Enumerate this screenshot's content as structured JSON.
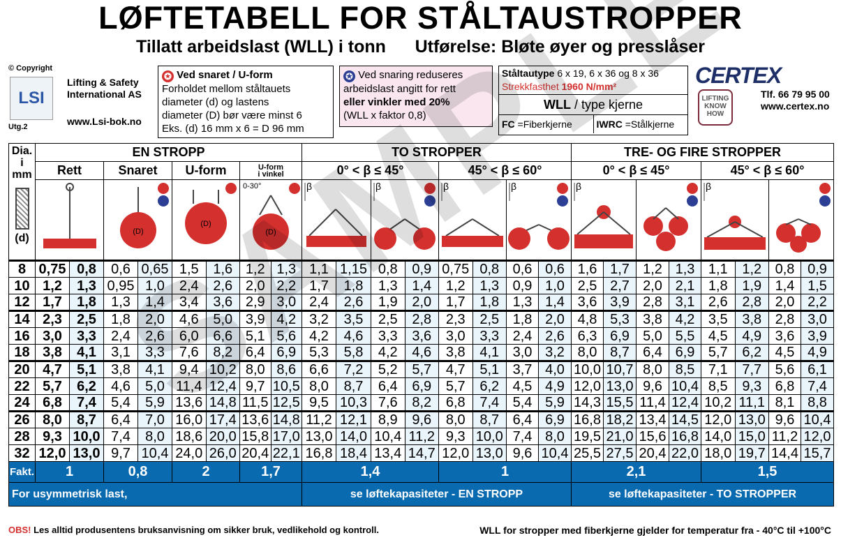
{
  "title": "LØFTETABELL FOR STÅLTAUSTROPPER",
  "subtitle": "Tillatt arbeidslast (WLL) i tonn      Utførelse: Bløte øyer og presslåser",
  "copyright": "© Copyright",
  "company": {
    "name": "Lifting & Safety",
    "name2": "International AS",
    "web": "www.Lsi-bok.no",
    "utg": "Utg.2",
    "logo_text": "LSI"
  },
  "box1": {
    "star": "✪",
    "head": "Ved snaret / U-form",
    "l1": "Forholdet mellom ståltauets",
    "l2": "diameter (d) og lastens",
    "l3": "diameter (D) bør være minst 6",
    "l4": "Eks. (d) 16 mm x 6 = D 96 mm"
  },
  "box2": {
    "star": "✪",
    "l1": "Ved snaring reduseres",
    "l2": "arbeidslast angitt for rett",
    "l3": "eller vinkler med 20%",
    "l4": "(WLL x faktor 0,8)"
  },
  "box3": {
    "l1a": "Ståltautype",
    "l1b": " 6 x 19, 6 x 36 og 8 x 36",
    "l2a": "Strekkfasthet ",
    "l2b": "1960 N/mm²",
    "wll": "WLL",
    "wll2": " / type kjerne",
    "fc": "FC",
    "fc2": " =Fiberkjerne",
    "iwrc": "IWRC",
    "iwrc2": " =Stålkjerne"
  },
  "certex": {
    "logo": "CERTEX",
    "tlf": "Tlf. 66 79 95 00",
    "web": "www.certex.no",
    "badge": "LIFTING KNOW HOW"
  },
  "headers": {
    "dia": "Dia. i mm",
    "d": "(d)",
    "en_stropp": "EN STROPP",
    "to_stropper": "TO STROPPER",
    "tre_fire": "TRE- OG FIRE STROPPER",
    "rett": "Rett",
    "snaret": "Snaret",
    "uform": "U-form",
    "uvinkel1": "U-form",
    "uvinkel2": "i vinkel",
    "a45": "0° < β ≤ 45°",
    "a60": "45° < β ≤ 60°",
    "angle_small": "0-30°",
    "beta": "β",
    "dlabel": "(D)"
  },
  "rows": [
    [
      "8",
      "0,75",
      "0,8",
      "0,6",
      "0,65",
      "1,5",
      "1,6",
      "1,2",
      "1,3",
      "1,1",
      "1,15",
      "0,8",
      "0,9",
      "0,75",
      "0,8",
      "0,6",
      "0,6",
      "1,6",
      "1,7",
      "1,2",
      "1,3",
      "1,1",
      "1,2",
      "0,8",
      "0,9"
    ],
    [
      "10",
      "1,2",
      "1,3",
      "0,95",
      "1,0",
      "2,4",
      "2,6",
      "2,0",
      "2,2",
      "1,7",
      "1,8",
      "1,3",
      "1,4",
      "1,2",
      "1,3",
      "0,9",
      "1,0",
      "2,5",
      "2,7",
      "2,0",
      "2,1",
      "1,8",
      "1,9",
      "1,4",
      "1,5"
    ],
    [
      "12",
      "1,7",
      "1,8",
      "1,3",
      "1,4",
      "3,4",
      "3,6",
      "2,9",
      "3,0",
      "2,4",
      "2,6",
      "1,9",
      "2,0",
      "1,7",
      "1,8",
      "1,3",
      "1,4",
      "3,6",
      "3,9",
      "2,8",
      "3,1",
      "2,6",
      "2,8",
      "2,0",
      "2,2"
    ],
    [
      "14",
      "2,3",
      "2,5",
      "1,8",
      "2,0",
      "4,6",
      "5,0",
      "3,9",
      "4,2",
      "3,2",
      "3,5",
      "2,5",
      "2,8",
      "2,3",
      "2,5",
      "1,8",
      "2,0",
      "4,8",
      "5,3",
      "3,8",
      "4,2",
      "3,5",
      "3,8",
      "2,8",
      "3,0"
    ],
    [
      "16",
      "3,0",
      "3,3",
      "2,4",
      "2,6",
      "6,0",
      "6,6",
      "5,1",
      "5,6",
      "4,2",
      "4,6",
      "3,3",
      "3,6",
      "3,0",
      "3,3",
      "2,4",
      "2,6",
      "6,3",
      "6,9",
      "5,0",
      "5,5",
      "4,5",
      "4,9",
      "3,6",
      "3,9"
    ],
    [
      "18",
      "3,8",
      "4,1",
      "3,1",
      "3,3",
      "7,6",
      "8,2",
      "6,4",
      "6,9",
      "5,3",
      "5,8",
      "4,2",
      "4,6",
      "3,8",
      "4,1",
      "3,0",
      "3,2",
      "8,0",
      "8,7",
      "6,4",
      "6,9",
      "5,7",
      "6,2",
      "4,5",
      "4,9"
    ],
    [
      "20",
      "4,7",
      "5,1",
      "3,8",
      "4,1",
      "9,4",
      "10,2",
      "8,0",
      "8,6",
      "6,6",
      "7,2",
      "5,2",
      "5,7",
      "4,7",
      "5,1",
      "3,7",
      "4,0",
      "10,0",
      "10,7",
      "8,0",
      "8,5",
      "7,1",
      "7,7",
      "5,6",
      "6,1"
    ],
    [
      "22",
      "5,7",
      "6,2",
      "4,6",
      "5,0",
      "11,4",
      "12,4",
      "9,7",
      "10,5",
      "8,0",
      "8,7",
      "6,4",
      "6,9",
      "5,7",
      "6,2",
      "4,5",
      "4,9",
      "12,0",
      "13,0",
      "9,6",
      "10,4",
      "8,5",
      "9,3",
      "6,8",
      "7,4"
    ],
    [
      "24",
      "6,8",
      "7,4",
      "5,4",
      "5,9",
      "13,6",
      "14,8",
      "11,5",
      "12,5",
      "9,5",
      "10,3",
      "7,6",
      "8,2",
      "6,8",
      "7,4",
      "5,4",
      "5,9",
      "14,3",
      "15,5",
      "11,4",
      "12,4",
      "10,2",
      "11,1",
      "8,1",
      "8,8"
    ],
    [
      "26",
      "8,0",
      "8,7",
      "6,4",
      "7,0",
      "16,0",
      "17,4",
      "13,6",
      "14,8",
      "11,2",
      "12,1",
      "8,9",
      "9,6",
      "8,0",
      "8,7",
      "6,4",
      "6,9",
      "16,8",
      "18,2",
      "13,4",
      "14,5",
      "12,0",
      "13,0",
      "9,6",
      "10,4"
    ],
    [
      "28",
      "9,3",
      "10,0",
      "7,4",
      "8,0",
      "18,6",
      "20,0",
      "15,8",
      "17,0",
      "13,0",
      "14,0",
      "10,4",
      "11,2",
      "9,3",
      "10,0",
      "7,4",
      "8,0",
      "19,5",
      "21,0",
      "15,6",
      "16,8",
      "14,0",
      "15,0",
      "11,2",
      "12,0"
    ],
    [
      "32",
      "12,0",
      "13,0",
      "9,7",
      "10,4",
      "24,0",
      "26,0",
      "20,4",
      "22,1",
      "16,8",
      "18,4",
      "13,4",
      "14,7",
      "12,0",
      "13,0",
      "9,6",
      "10,4",
      "25,5",
      "27,5",
      "20,4",
      "22,0",
      "18,0",
      "19,7",
      "14,4",
      "15,7"
    ]
  ],
  "fakt": {
    "label": "Fakt.",
    "v1": "1",
    "v2": "0,8",
    "v3": "2",
    "v4": "1,7",
    "v5": "1,4",
    "v6": "1",
    "v7": "2,1",
    "v8": "1,5"
  },
  "footer_row": {
    "left": "For usymmetrisk last,",
    "mid": "se løftekapasiteter - EN STROPP",
    "right": "se løftekapasiteter - TO STROPPER"
  },
  "bottom": {
    "obs": "OBS!",
    "obs_text": " Les alltid produsentens bruksanvisning om sikker bruk, vedlikehold og kontroll.",
    "right": "WLL for stropper med fiberkjerne gjelder for temperatur fra - 40°C  til +100°C"
  },
  "watermark": "SAMPLE"
}
